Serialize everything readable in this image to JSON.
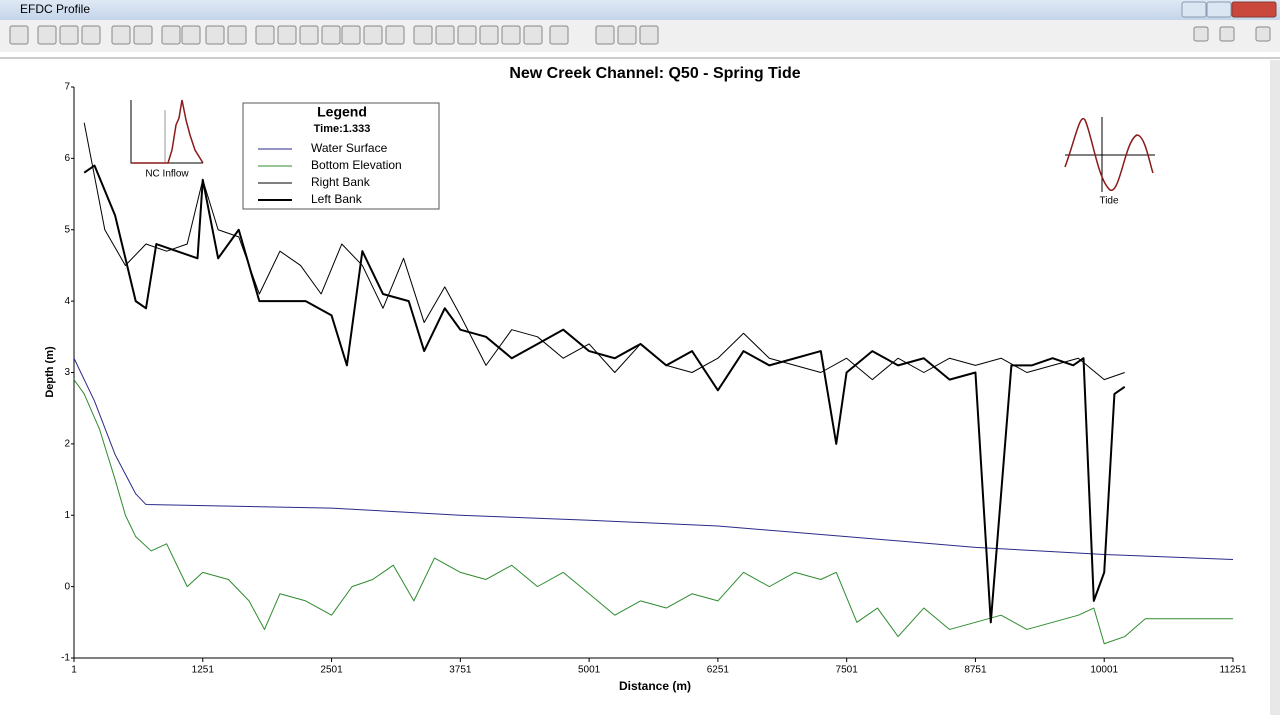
{
  "window": {
    "title": "EFDC Profile"
  },
  "chart_data": {
    "type": "line",
    "title": "New Creek Channel:  Q50 - Spring Tide",
    "x_label": "Distance (m)",
    "y_label": "Depth (m)",
    "xlim": [
      1,
      11251
    ],
    "xticks": [
      1,
      1251,
      2501,
      3751,
      5001,
      6251,
      7501,
      8751,
      10001,
      11251
    ],
    "ylim": [
      -1,
      7
    ],
    "yticks": [
      -1,
      0,
      1,
      2,
      3,
      4,
      5,
      6,
      7
    ],
    "legend": {
      "title": "Legend",
      "subtitle": "Time:1.333"
    },
    "insets": [
      {
        "label": "NC Inflow"
      },
      {
        "label": "Tide"
      }
    ],
    "series": [
      {
        "name": "Water Surface",
        "color": "#2a2a8a",
        "width": 1,
        "x": [
          1,
          200,
          400,
          600,
          700,
          2501,
          3751,
          5001,
          6251,
          7501,
          8751,
          10001,
          11251
        ],
        "values": [
          3.2,
          2.6,
          1.85,
          1.3,
          1.15,
          1.1,
          1.0,
          0.93,
          0.85,
          0.7,
          0.55,
          0.45,
          0.38
        ]
      },
      {
        "name": "Bottom Elevation",
        "color": "#2e8b2e",
        "width": 1,
        "x": [
          1,
          100,
          250,
          400,
          500,
          600,
          750,
          900,
          1100,
          1251,
          1500,
          1700,
          1850,
          2000,
          2250,
          2501,
          2700,
          2900,
          3100,
          3300,
          3500,
          3751,
          4000,
          4250,
          4500,
          4750,
          5001,
          5250,
          5500,
          5750,
          6000,
          6251,
          6500,
          6750,
          7000,
          7250,
          7400,
          7600,
          7800,
          8000,
          8250,
          8500,
          8751,
          9000,
          9250,
          9500,
          9750,
          9900,
          10001,
          10200,
          10400,
          11251
        ],
        "values": [
          2.9,
          2.7,
          2.2,
          1.5,
          1.0,
          0.7,
          0.5,
          0.6,
          0.0,
          0.2,
          0.1,
          -0.2,
          -0.6,
          -0.1,
          -0.2,
          -0.4,
          0.0,
          0.1,
          0.3,
          -0.2,
          0.4,
          0.2,
          0.1,
          0.3,
          0.0,
          0.2,
          -0.1,
          -0.4,
          -0.2,
          -0.3,
          -0.1,
          -0.2,
          0.2,
          0.0,
          0.2,
          0.1,
          0.2,
          -0.5,
          -0.3,
          -0.7,
          -0.3,
          -0.6,
          -0.5,
          -0.4,
          -0.6,
          -0.5,
          -0.4,
          -0.3,
          -0.8,
          -0.7,
          -0.45,
          -0.45
        ]
      },
      {
        "name": "Right Bank",
        "color": "#000000",
        "width": 1,
        "x": [
          100,
          300,
          500,
          700,
          900,
          1100,
          1251,
          1400,
          1600,
          1800,
          2000,
          2200,
          2400,
          2600,
          2800,
          3000,
          3200,
          3400,
          3600,
          3751,
          4000,
          4250,
          4500,
          4750,
          5001,
          5250,
          5500,
          5750,
          6000,
          6251,
          6500,
          6750,
          7000,
          7250,
          7500,
          7750,
          8000,
          8250,
          8500,
          8751,
          9000,
          9250,
          9500,
          9750,
          10001,
          10200
        ],
        "values": [
          6.5,
          5.0,
          4.5,
          4.8,
          4.7,
          4.8,
          5.7,
          5.0,
          4.9,
          4.1,
          4.7,
          4.5,
          4.1,
          4.8,
          4.5,
          3.9,
          4.6,
          3.7,
          4.2,
          3.8,
          3.1,
          3.6,
          3.5,
          3.2,
          3.4,
          3.0,
          3.4,
          3.1,
          3.0,
          3.2,
          3.55,
          3.2,
          3.1,
          3.0,
          3.2,
          2.9,
          3.2,
          3.0,
          3.2,
          3.1,
          3.2,
          3.0,
          3.1,
          3.2,
          2.9,
          3.0
        ]
      },
      {
        "name": "Left Bank",
        "color": "#000000",
        "width": 2,
        "x": [
          100,
          200,
          400,
          600,
          700,
          800,
          1000,
          1200,
          1251,
          1400,
          1600,
          1800,
          2000,
          2250,
          2501,
          2650,
          2800,
          3000,
          3250,
          3400,
          3600,
          3751,
          4000,
          4250,
          4500,
          4750,
          5001,
          5250,
          5500,
          5750,
          6000,
          6251,
          6500,
          6750,
          7000,
          7250,
          7400,
          7500,
          7750,
          8000,
          8250,
          8500,
          8751,
          8900,
          9100,
          9300,
          9500,
          9700,
          9800,
          9900,
          10001,
          10100,
          10200
        ],
        "values": [
          5.8,
          5.9,
          5.2,
          4.0,
          3.9,
          4.8,
          4.7,
          4.6,
          5.7,
          4.6,
          5.0,
          4.0,
          4.0,
          4.0,
          3.8,
          3.1,
          4.7,
          4.1,
          4.0,
          3.3,
          3.9,
          3.6,
          3.5,
          3.2,
          3.4,
          3.6,
          3.3,
          3.2,
          3.4,
          3.1,
          3.3,
          2.75,
          3.3,
          3.1,
          3.2,
          3.3,
          2.0,
          3.0,
          3.3,
          3.1,
          3.2,
          2.9,
          3.0,
          -0.5,
          3.1,
          3.1,
          3.2,
          3.1,
          3.2,
          -0.2,
          0.2,
          2.7,
          2.8
        ]
      }
    ]
  }
}
